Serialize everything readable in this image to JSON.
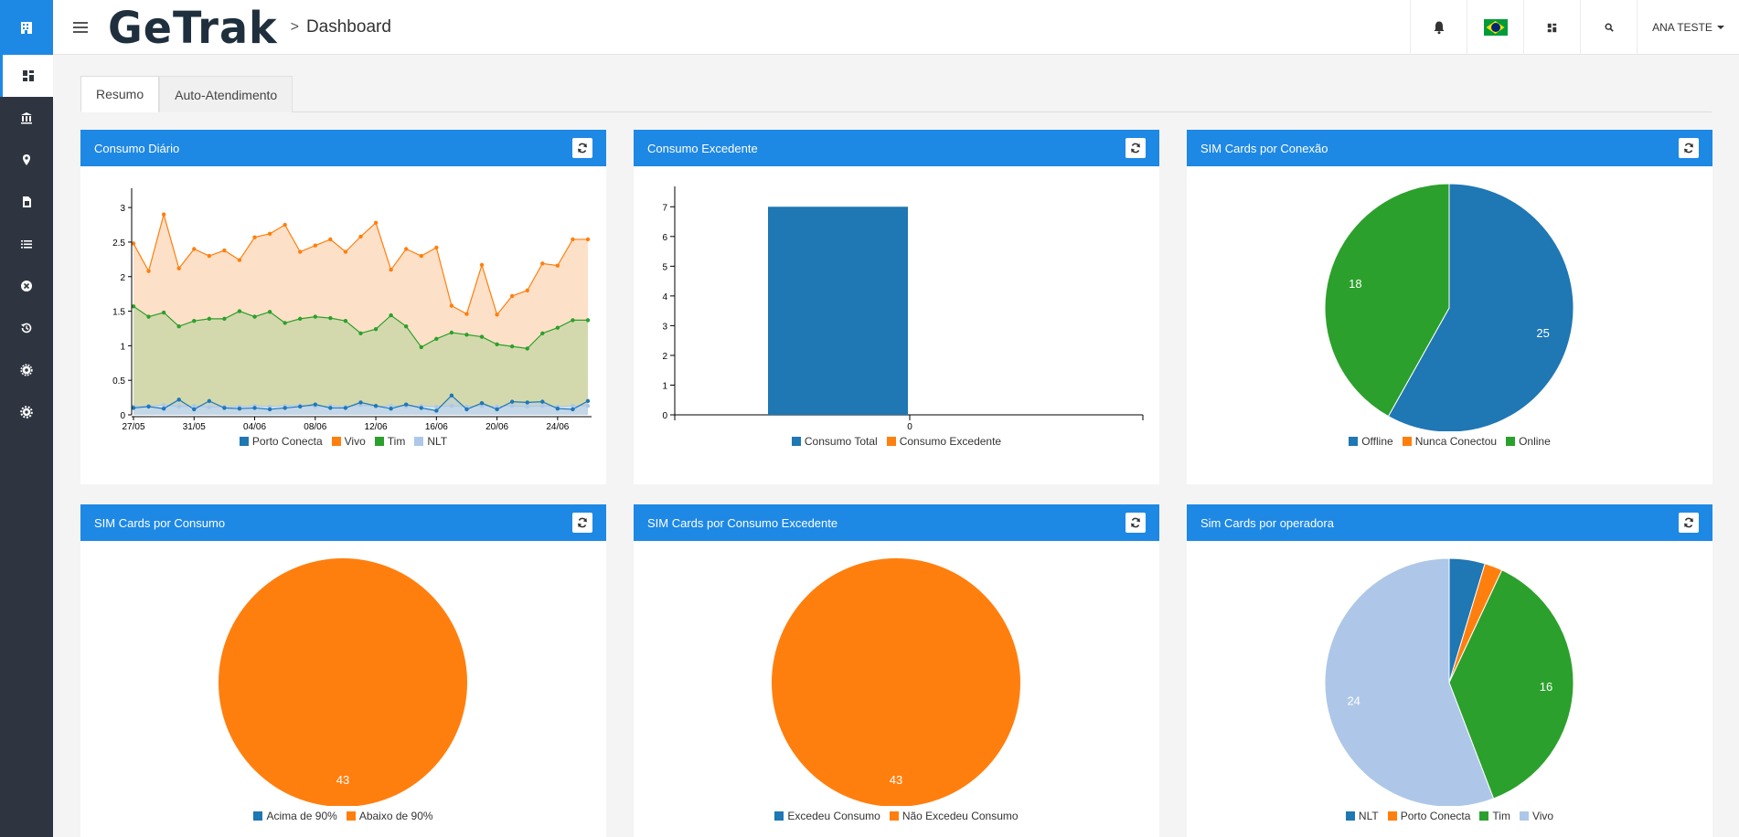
{
  "app": {
    "brand": "GeTrak",
    "breadcrumb_sep": ">",
    "breadcrumb": "Dashboard",
    "user": "ANA TESTE"
  },
  "tabs": [
    {
      "label": "Resumo"
    },
    {
      "label": "Auto-Atendimento"
    }
  ],
  "colors": {
    "blue": "#1f77b4",
    "orange": "#ff7f0e",
    "green": "#2ca02c",
    "lightblue": "#aec7e8",
    "header": "#1e88e5"
  },
  "panels": {
    "p1": {
      "title": "Consumo Diário"
    },
    "p2": {
      "title": "Consumo Excedente"
    },
    "p3": {
      "title": "SIM Cards por Conexão"
    },
    "p4": {
      "title": "SIM Cards por Consumo"
    },
    "p5": {
      "title": "SIM Cards por Consumo Excedente"
    },
    "p6": {
      "title": "Sim Cards por operadora"
    }
  },
  "chart_data": [
    {
      "type": "area",
      "title": "Consumo Diário",
      "x_ticks": [
        "27/05",
        "31/05",
        "04/06",
        "08/06",
        "12/06",
        "16/06",
        "20/06",
        "24/06"
      ],
      "ylim": [
        0,
        3.2
      ],
      "y_ticks": [
        "0",
        "0.5",
        "1",
        "1.5",
        "2",
        "2.5",
        "3"
      ],
      "series": [
        {
          "name": "Porto Conecta",
          "color": "#1f77b4",
          "values": [
            0.1,
            0.12,
            0.09,
            0.22,
            0.08,
            0.2,
            0.1,
            0.09,
            0.1,
            0.08,
            0.1,
            0.12,
            0.15,
            0.1,
            0.1,
            0.18,
            0.13,
            0.09,
            0.15,
            0.1,
            0.06,
            0.28,
            0.08,
            0.17,
            0.08,
            0.19,
            0.18,
            0.19,
            0.09,
            0.08,
            0.2
          ]
        },
        {
          "name": "Vivo",
          "color": "#ff7f0e",
          "values": [
            2.48,
            2.08,
            2.9,
            2.12,
            2.4,
            2.3,
            2.38,
            2.24,
            2.57,
            2.62,
            2.75,
            2.36,
            2.45,
            2.54,
            2.36,
            2.58,
            2.78,
            2.1,
            2.4,
            2.3,
            2.42,
            1.58,
            1.46,
            2.17,
            1.45,
            1.72,
            1.8,
            2.19,
            2.16,
            2.54,
            2.54
          ]
        },
        {
          "name": "Tim",
          "color": "#2ca02c",
          "values": [
            1.57,
            1.42,
            1.48,
            1.28,
            1.36,
            1.39,
            1.39,
            1.5,
            1.42,
            1.49,
            1.33,
            1.39,
            1.42,
            1.4,
            1.36,
            1.18,
            1.24,
            1.44,
            1.28,
            0.98,
            1.1,
            1.19,
            1.16,
            1.13,
            1.02,
            0.99,
            0.96,
            1.18,
            1.26,
            1.37,
            1.37
          ]
        },
        {
          "name": "NLT",
          "color": "#aec7e8",
          "values": [
            0.12,
            0.13,
            0.14,
            0.12,
            0.13,
            0.11,
            0.12,
            0.12,
            0.13,
            0.12,
            0.13,
            0.14,
            0.12,
            0.13,
            0.12,
            0.14,
            0.12,
            0.13,
            0.12,
            0.13,
            0.12,
            0.13,
            0.12,
            0.13,
            0.12,
            0.13,
            0.12,
            0.13,
            0.12,
            0.13,
            0.13
          ]
        }
      ]
    },
    {
      "type": "bar",
      "title": "Consumo Excedente",
      "categories": [
        "0"
      ],
      "ylim": [
        0,
        7.5
      ],
      "y_ticks": [
        "0",
        "1",
        "2",
        "3",
        "4",
        "5",
        "6",
        "7"
      ],
      "series": [
        {
          "name": "Consumo Total",
          "color": "#1f77b4",
          "values": [
            7
          ]
        },
        {
          "name": "Consumo Excedente",
          "color": "#ff7f0e",
          "values": [
            0
          ]
        }
      ]
    },
    {
      "type": "pie",
      "title": "SIM Cards por Conexão",
      "slices": [
        {
          "label": "Offline",
          "value": 25,
          "color": "#1f77b4"
        },
        {
          "label": "Nunca Conectou",
          "value": 0,
          "color": "#ff7f0e"
        },
        {
          "label": "Online",
          "value": 18,
          "color": "#2ca02c"
        }
      ]
    },
    {
      "type": "pie",
      "title": "SIM Cards por Consumo",
      "slices": [
        {
          "label": "Acima de 90%",
          "value": 0,
          "color": "#1f77b4"
        },
        {
          "label": "Abaixo de 90%",
          "value": 43,
          "color": "#ff7f0e"
        }
      ]
    },
    {
      "type": "pie",
      "title": "SIM Cards por Consumo Excedente",
      "slices": [
        {
          "label": "Excedeu Consumo",
          "value": 0,
          "color": "#1f77b4"
        },
        {
          "label": "Não Excedeu Consumo",
          "value": 43,
          "color": "#ff7f0e"
        }
      ]
    },
    {
      "type": "pie",
      "title": "Sim Cards por operadora",
      "slices": [
        {
          "label": "NLT",
          "value": 2,
          "color": "#1f77b4"
        },
        {
          "label": "Porto Conecta",
          "value": 1,
          "color": "#ff7f0e"
        },
        {
          "label": "Tim",
          "value": 16,
          "color": "#2ca02c"
        },
        {
          "label": "Vivo",
          "value": 24,
          "color": "#aec7e8"
        }
      ]
    }
  ]
}
